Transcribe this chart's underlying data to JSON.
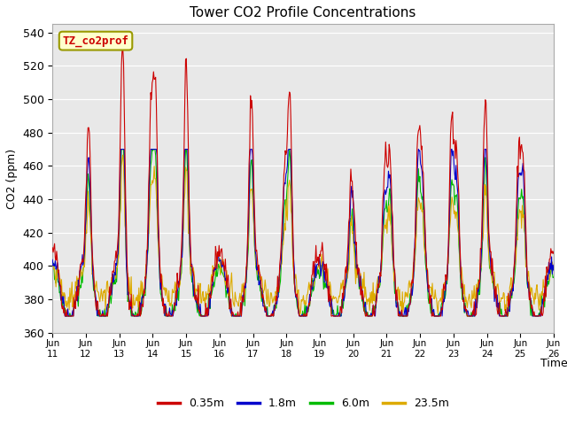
{
  "title": "Tower CO2 Profile Concentrations",
  "xlabel": "Time",
  "ylabel": "CO2 (ppm)",
  "ylim": [
    360,
    545
  ],
  "yticks": [
    360,
    380,
    400,
    420,
    440,
    460,
    480,
    500,
    520,
    540
  ],
  "fig_bg_color": "#ffffff",
  "plot_bg_color": "#e8e8e8",
  "series_colors": [
    "#cc0000",
    "#0000cc",
    "#00bb00",
    "#ddaa00"
  ],
  "series_labels": [
    "0.35m",
    "1.8m",
    "6.0m",
    "23.5m"
  ],
  "legend_label": "TZ_co2prof",
  "legend_label_bg": "#ffffcc",
  "legend_label_border": "#999900",
  "x_start": 0,
  "x_end": 15,
  "xtick_positions": [
    0,
    1,
    2,
    3,
    4,
    5,
    6,
    7,
    8,
    9,
    10,
    11,
    12,
    13,
    14,
    15
  ],
  "xtick_labels": [
    "Jun 11",
    "Jun 12",
    "Jun 13",
    "Jun 14",
    "Jun 15",
    "Jun 16",
    "Jun 17",
    "Jun 18",
    "Jun 19",
    "Jun 20",
    "Jun 21",
    "Jun 22",
    "Jun 23",
    "Jun 24",
    "Jun 25",
    "Jun 26"
  ]
}
